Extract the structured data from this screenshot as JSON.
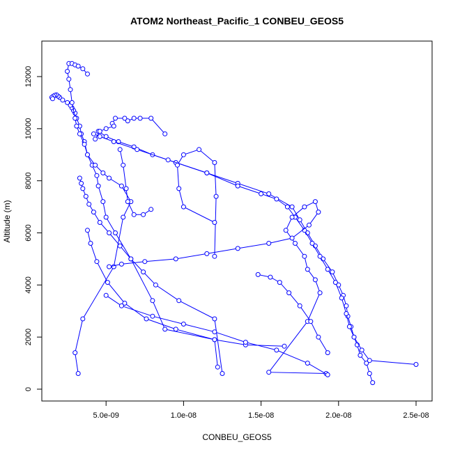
{
  "chart_data": {
    "type": "line",
    "title": "ATOM2 Northeast_Pacific_1 CONBEU_GEOS5",
    "xlabel": "CONBEU_GEOS5",
    "ylabel": "Altitude (m)",
    "xlim": [
      0.0,
      2.5e-08
    ],
    "ylim": [
      0,
      12800
    ],
    "x_ticks": [
      5e-09,
      1e-08,
      1.5e-08,
      2e-08,
      2.5e-08
    ],
    "x_tick_labels": [
      "5.0e-09",
      "1.0e-08",
      "1.5e-08",
      "2.0e-08",
      "2.5e-08"
    ],
    "y_ticks": [
      0,
      2000,
      4000,
      6000,
      8000,
      10000,
      12000
    ],
    "y_tick_labels": [
      "0",
      "2000",
      "4000",
      "6000",
      "8000",
      "10000",
      "12000"
    ],
    "grid": false,
    "legend": "none",
    "marker": "open-circle",
    "color": "#0000ff",
    "series": [
      {
        "x": [
          1.22e-08,
          1.2e-08,
          8.8e-09,
          8e-09,
          6.6e-09,
          5.6e-09,
          5e-09,
          4.8e-09,
          4.5e-09,
          4.4e-09,
          4.1e-09,
          3.8e-09,
          3.6e-09,
          3.4e-09,
          3.3e-09,
          3.1e-09,
          3e-09,
          2.9e-09,
          2.8e-09,
          2.7e-09,
          2.5e-09,
          2.2e-09,
          2e-09,
          1.9e-09,
          1.8e-09,
          1.7e-09,
          1.6e-09,
          1.5e-09,
          1.55e-09
        ],
        "y": [
          850,
          1900,
          2300,
          3400,
          5000,
          6000,
          6600,
          7200,
          7800,
          8200,
          8600,
          9000,
          9500,
          9800,
          10100,
          10400,
          10600,
          10700,
          10800,
          10900,
          11000,
          11100,
          11200,
          11250,
          11300,
          11280,
          11250,
          11200,
          11150
        ]
      },
      {
        "x": [
          3.2e-09,
          3e-09,
          3.5e-09,
          5.5e-09,
          6.1e-09,
          6.6e-09,
          6e-09,
          5.2e-09,
          4.8e-09,
          4.3e-09,
          3.8e-09,
          3.6e-09,
          3.3e-09,
          3.1e-09,
          3e-09,
          2.8e-09,
          2.7e-09,
          2.6e-09,
          2.5e-09,
          2.6e-09,
          2.8e-09,
          3e-09,
          3.2e-09,
          3.5e-09,
          3.8e-09
        ],
        "y": [
          600,
          1400,
          2700,
          4700,
          6600,
          7200,
          7800,
          8100,
          8300,
          8600,
          9000,
          9400,
          9800,
          10100,
          10400,
          11000,
          11500,
          11900,
          12200,
          12500,
          12500,
          12450,
          12400,
          12300,
          12100
        ]
      },
      {
        "x": [
          1.25e-08,
          1.2e-08,
          9.7e-09,
          8.2e-09,
          7.4e-09,
          6.6e-09,
          5.9e-09,
          5.2e-09,
          4.6e-09,
          4.2e-09,
          3.9e-09,
          3.7e-09,
          3.5e-09,
          3.4e-09,
          3.3e-09
        ],
        "y": [
          600,
          2700,
          3400,
          4000,
          4500,
          5000,
          5500,
          6000,
          6400,
          6800,
          7100,
          7400,
          7700,
          7900,
          8100
        ]
      },
      {
        "x": [
          2.22e-08,
          2.2e-08,
          2.18e-08,
          2.14e-08,
          2.12e-08,
          2.1e-08,
          2.08e-08,
          2.06e-08,
          2.05e-08,
          2.03e-08,
          2e-08,
          1.96e-08,
          1.9e-08,
          1.85e-08,
          1.8e-08,
          1.75e-08,
          1.7e-08,
          1.55e-08,
          1.35e-08,
          1.15e-08,
          9.5e-09,
          8e-09,
          6.8e-09,
          5.8e-09,
          5e-09,
          4.5e-09
        ],
        "y": [
          250,
          600,
          1000,
          1300,
          1700,
          2000,
          2400,
          2800,
          3200,
          3600,
          4000,
          4500,
          5000,
          5500,
          6000,
          6500,
          7000,
          7500,
          7900,
          8300,
          8700,
          9000,
          9300,
          9500,
          9700,
          9900
        ]
      },
      {
        "x": [
          2.5e-08,
          2.2e-08,
          2.15e-08,
          2.1e-08,
          2.07e-08,
          2.05e-08,
          2.02e-08,
          1.98e-08,
          1.93e-08,
          1.88e-08,
          1.83e-08,
          1.78e-08,
          1.72e-08,
          1.67e-08,
          1.6e-08,
          1.5e-08,
          1.35e-08,
          1.15e-08,
          9e-09,
          7e-09,
          5.5e-09,
          4.6e-09,
          4.2e-09
        ],
        "y": [
          950,
          1100,
          1500,
          2000,
          2400,
          2900,
          3500,
          4100,
          4600,
          5100,
          5600,
          6100,
          6600,
          7000,
          7300,
          7500,
          7800,
          8300,
          8800,
          9200,
          9500,
          9700,
          9800
        ]
      },
      {
        "x": [
          1.92e-08,
          1.55e-08,
          1.8e-08,
          1.88e-08,
          1.85e-08,
          1.8e-08,
          1.78e-08,
          1.72e-08,
          1.66e-08,
          1.7e-08,
          1.78e-08,
          1.85e-08,
          1.87e-08,
          1.81e-08,
          1.7e-08,
          1.55e-08,
          1.35e-08,
          1.15e-08,
          9.5e-09,
          7.5e-09,
          6e-09,
          5.2e-09
        ],
        "y": [
          600,
          650,
          2600,
          3700,
          4200,
          4600,
          5100,
          5600,
          6100,
          6600,
          7000,
          7200,
          6800,
          6300,
          5800,
          5600,
          5400,
          5200,
          5000,
          4900,
          4800,
          4700
        ]
      },
      {
        "x": [
          1.65e-08,
          1.4e-08,
          1.2e-08,
          9.5e-09,
          7.6e-09,
          6.2e-09,
          5.1e-09,
          4.4e-09,
          4e-09,
          3.8e-09
        ],
        "y": [
          1650,
          1700,
          1900,
          2300,
          2700,
          3300,
          4100,
          4900,
          5600,
          6100
        ]
      },
      {
        "x": [
          1.2e-08,
          1e-08,
          9.7e-09,
          9.6e-09,
          1e-08,
          1.1e-08,
          1.2e-08,
          1.21e-08,
          1.2e-08
        ],
        "y": [
          6400,
          7000,
          7700,
          8600,
          9000,
          9200,
          8700,
          7400,
          5100
        ]
      },
      {
        "x": [
          1.93e-08,
          1.8e-08,
          1.6e-08,
          1.4e-08,
          1.2e-08,
          1e-08,
          8e-09,
          6e-09,
          5e-09
        ],
        "y": [
          550,
          1000,
          1500,
          1800,
          2200,
          2500,
          2800,
          3200,
          3600
        ]
      },
      {
        "x": [
          8.8e-09,
          7.9e-09,
          7.2e-09,
          6.8e-09,
          6.4e-09,
          6.2e-09,
          5.6e-09,
          5.4e-09,
          5.5e-09,
          5e-09,
          4.6e-09,
          4.3e-09
        ],
        "y": [
          9800,
          10400,
          10400,
          10400,
          10300,
          10400,
          10400,
          10200,
          10100,
          10000,
          9900,
          9600
        ]
      },
      {
        "x": [
          7.9e-09,
          7.4e-09,
          6.8e-09,
          6.4e-09,
          6.3e-09,
          6.1e-09,
          5.9e-09
        ],
        "y": [
          6900,
          6700,
          6700,
          7200,
          7700,
          8600,
          9200
        ]
      },
      {
        "x": [
          1.93e-08,
          1.87e-08,
          1.82e-08,
          1.75e-08,
          1.68e-08,
          1.62e-08,
          1.56e-08,
          1.48e-08
        ],
        "y": [
          1400,
          2000,
          2600,
          3200,
          3700,
          4100,
          4300,
          4400
        ]
      }
    ]
  }
}
